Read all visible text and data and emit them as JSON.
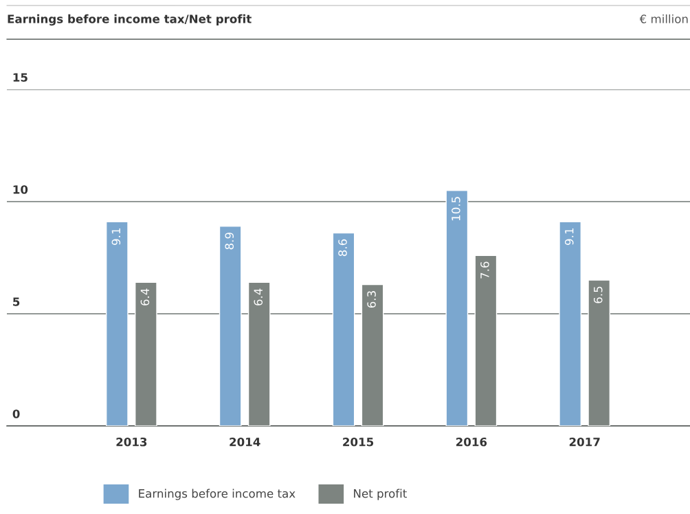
{
  "chart_data": {
    "type": "bar",
    "title": "Earnings before income tax/Net profit",
    "subtitle": "€ million",
    "categories": [
      "2013",
      "2014",
      "2015",
      "2016",
      "2017"
    ],
    "series": [
      {
        "name": "Earnings before income tax",
        "color": "#7ba7cf",
        "values": [
          9.1,
          8.9,
          8.6,
          10.5,
          9.1
        ]
      },
      {
        "name": "Net profit",
        "color": "#7d8480",
        "values": [
          6.4,
          6.4,
          6.3,
          7.6,
          6.5
        ]
      }
    ],
    "ylim": [
      0,
      15
    ],
    "yticks": [
      0,
      5,
      10,
      15
    ],
    "grid": "y",
    "legend": "bottom",
    "data_labels": true
  }
}
